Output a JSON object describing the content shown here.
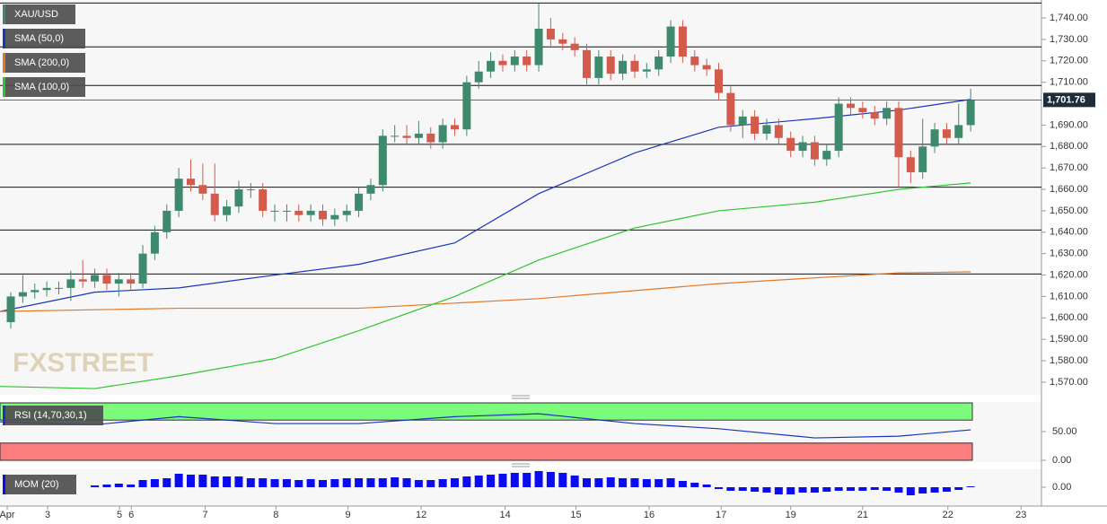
{
  "chart_data": {
    "type": "candlestick",
    "symbol": "XAU/USD",
    "watermark": "FXSTREET",
    "bull_color": "#3e8a6d",
    "bear_color": "#d45a4c",
    "xlim": [
      -0.9,
      85.9
    ],
    "xticks": [
      {
        "value": -0.3,
        "label": "Apr"
      },
      {
        "value": 3.07,
        "label": "3"
      },
      {
        "value": 9.06,
        "label": "5"
      },
      {
        "value": 10.04,
        "label": "6"
      },
      {
        "value": 16.2,
        "label": "7"
      },
      {
        "value": 22.1,
        "label": "8"
      },
      {
        "value": 28.1,
        "label": "9"
      },
      {
        "value": 34.2,
        "label": "12"
      },
      {
        "value": 41.2,
        "label": "14"
      },
      {
        "value": 47.1,
        "label": "15"
      },
      {
        "value": 53.2,
        "label": "16"
      },
      {
        "value": 59.2,
        "label": "17"
      },
      {
        "value": 65.0,
        "label": "19"
      },
      {
        "value": 71.0,
        "label": "21"
      },
      {
        "value": 78.1,
        "label": "22"
      },
      {
        "value": 84.2,
        "label": "23"
      }
    ],
    "ylim": [
      1564.1,
      1748.4
    ],
    "yticks": [
      {
        "value": 1740,
        "label": "1,740.00"
      },
      {
        "value": 1730,
        "label": "1,730.00"
      },
      {
        "value": 1720,
        "label": "1,720.00"
      },
      {
        "value": 1710,
        "label": "1,710.00"
      },
      {
        "value": 1690,
        "label": "1,690.00"
      },
      {
        "value": 1680,
        "label": "1,680.00"
      },
      {
        "value": 1670,
        "label": "1,670.00"
      },
      {
        "value": 1660,
        "label": "1,660.00"
      },
      {
        "value": 1650,
        "label": "1,650.00"
      },
      {
        "value": 1640,
        "label": "1,640.00"
      },
      {
        "value": 1630,
        "label": "1,630.00"
      },
      {
        "value": 1620,
        "label": "1,620.00"
      },
      {
        "value": 1610,
        "label": "1,610.00"
      },
      {
        "value": 1600,
        "label": "1,600.00"
      },
      {
        "value": 1590,
        "label": "1,590.00"
      },
      {
        "value": 1580,
        "label": "1,580.00"
      },
      {
        "value": 1570,
        "label": "1,570.00"
      }
    ],
    "last_price": {
      "value": 1701.76,
      "label": "1,701.76"
    },
    "levels": [
      1747,
      1726.5,
      1708.5,
      1681,
      1661,
      1641,
      1620.5
    ],
    "candles": [
      [
        1598,
        1612,
        1595,
        1610
      ],
      [
        1610,
        1620,
        1607,
        1612
      ],
      [
        1612,
        1616,
        1609,
        1613
      ],
      [
        1613,
        1617,
        1610,
        1614
      ],
      [
        1614,
        1617,
        1611,
        1614
      ],
      [
        1614,
        1622,
        1608,
        1618
      ],
      [
        1618,
        1627,
        1614,
        1617
      ],
      [
        1617,
        1623,
        1614,
        1620
      ],
      [
        1620,
        1623,
        1613,
        1616
      ],
      [
        1616,
        1621,
        1610,
        1618
      ],
      [
        1618,
        1621,
        1613,
        1616
      ],
      [
        1616,
        1634,
        1614,
        1630
      ],
      [
        1630,
        1643,
        1627,
        1640
      ],
      [
        1640,
        1653,
        1637,
        1650
      ],
      [
        1650,
        1670,
        1647,
        1665
      ],
      [
        1665,
        1674,
        1659,
        1662
      ],
      [
        1662,
        1672,
        1655,
        1658
      ],
      [
        1658,
        1672,
        1645,
        1648
      ],
      [
        1648,
        1655,
        1645,
        1652
      ],
      [
        1652,
        1664,
        1649,
        1660
      ],
      [
        1660,
        1663,
        1656,
        1660
      ],
      [
        1660,
        1663,
        1647,
        1650
      ],
      [
        1650,
        1653,
        1645,
        1650
      ],
      [
        1650,
        1653,
        1645,
        1650
      ],
      [
        1650,
        1653,
        1645,
        1648
      ],
      [
        1648,
        1653,
        1645,
        1650
      ],
      [
        1650,
        1653,
        1643,
        1646
      ],
      [
        1646,
        1651,
        1643,
        1648
      ],
      [
        1648,
        1653,
        1645,
        1650
      ],
      [
        1650,
        1661,
        1647,
        1658
      ],
      [
        1658,
        1665,
        1655,
        1662
      ],
      [
        1662,
        1688,
        1659,
        1685
      ],
      [
        1685,
        1690,
        1682,
        1685
      ],
      [
        1685,
        1690,
        1681,
        1684
      ],
      [
        1684,
        1692,
        1681,
        1686
      ],
      [
        1686,
        1689,
        1679,
        1682
      ],
      [
        1682,
        1693,
        1679,
        1690
      ],
      [
        1690,
        1693,
        1685,
        1688
      ],
      [
        1688,
        1713,
        1685,
        1710
      ],
      [
        1710,
        1720,
        1707,
        1715
      ],
      [
        1715,
        1724,
        1712,
        1720
      ],
      [
        1720,
        1723,
        1715,
        1718
      ],
      [
        1718,
        1725,
        1715,
        1722
      ],
      [
        1722,
        1725,
        1715,
        1718
      ],
      [
        1718,
        1747,
        1715,
        1735
      ],
      [
        1735,
        1740,
        1727,
        1730
      ],
      [
        1730,
        1733,
        1725,
        1728
      ],
      [
        1728,
        1731,
        1722,
        1725
      ],
      [
        1725,
        1728,
        1709,
        1712
      ],
      [
        1712,
        1725,
        1709,
        1722
      ],
      [
        1722,
        1725,
        1711,
        1714
      ],
      [
        1714,
        1723,
        1711,
        1720
      ],
      [
        1720,
        1723,
        1712,
        1715
      ],
      [
        1715,
        1719,
        1712,
        1716
      ],
      [
        1716,
        1725,
        1713,
        1722
      ],
      [
        1722,
        1739,
        1719,
        1736
      ],
      [
        1736,
        1739,
        1719,
        1722
      ],
      [
        1722,
        1725,
        1715,
        1718
      ],
      [
        1718,
        1721,
        1713,
        1716
      ],
      [
        1716,
        1719,
        1702,
        1705
      ],
      [
        1705,
        1708,
        1687,
        1690
      ],
      [
        1690,
        1697,
        1684,
        1694
      ],
      [
        1694,
        1697,
        1683,
        1686
      ],
      [
        1686,
        1693,
        1683,
        1690
      ],
      [
        1690,
        1693,
        1681,
        1684
      ],
      [
        1684,
        1687,
        1675,
        1678
      ],
      [
        1678,
        1685,
        1675,
        1682
      ],
      [
        1682,
        1685,
        1671,
        1674
      ],
      [
        1674,
        1681,
        1671,
        1678
      ],
      [
        1678,
        1703,
        1675,
        1700
      ],
      [
        1700,
        1703,
        1695,
        1698
      ],
      [
        1698,
        1701,
        1693,
        1696
      ],
      [
        1696,
        1699,
        1690,
        1693
      ],
      [
        1693,
        1701,
        1690,
        1698
      ],
      [
        1698,
        1701,
        1661,
        1675
      ],
      [
        1675,
        1678,
        1663,
        1668
      ],
      [
        1668,
        1693,
        1665,
        1680
      ],
      [
        1680,
        1691,
        1677,
        1688
      ],
      [
        1688,
        1691,
        1681,
        1684
      ],
      [
        1684,
        1700,
        1681,
        1690
      ],
      [
        1690,
        1707,
        1687,
        1701.76
      ]
    ],
    "series": [
      {
        "name": "SMA (50,0)",
        "color": "#1a35b8",
        "x": [
          -0.9,
          7,
          14,
          22,
          29,
          37,
          44,
          52,
          59,
          67,
          74,
          80
        ],
        "values": [
          1603,
          1612,
          1614,
          1620,
          1625,
          1635,
          1658,
          1677,
          1689,
          1693,
          1697,
          1702
        ]
      },
      {
        "name": "SMA (200,0)",
        "color": "#e0782a",
        "x": [
          -0.9,
          14,
          29,
          44,
          59,
          74,
          80
        ],
        "values": [
          1603,
          1604.5,
          1604.5,
          1609,
          1616,
          1621,
          1621.5
        ]
      },
      {
        "name": "SMA (100,0)",
        "color": "#2fc42f",
        "x": [
          -0.9,
          7,
          14,
          22,
          29,
          37,
          44,
          52,
          59,
          67,
          74,
          80
        ],
        "values": [
          1568,
          1567,
          1573,
          1581,
          1594,
          1610,
          1627,
          1642,
          1650,
          1654,
          1660,
          1663
        ]
      }
    ],
    "rsi": {
      "name": "RSI (14,70,30,1)",
      "color": "#1a35b8",
      "ylim": [
        0,
        100
      ],
      "yticks": [
        {
          "value": 50,
          "label": "50.00"
        },
        {
          "value": 0,
          "label": "0.00"
        }
      ],
      "overbought": [
        70,
        100
      ],
      "oversold": [
        0,
        30
      ],
      "x": [
        -0.9,
        7,
        14,
        22,
        29,
        37,
        44,
        52,
        59,
        67,
        74,
        80
      ],
      "values": [
        67,
        62,
        76,
        64,
        64,
        76,
        81,
        64,
        55,
        39,
        42,
        53
      ]
    },
    "mom": {
      "name": "MOM (20)",
      "color": "#0b0bf0",
      "ylim": [
        -20,
        20
      ],
      "yticks": [
        {
          "value": 0,
          "label": "0.00"
        }
      ],
      "values": [
        null,
        null,
        null,
        null,
        null,
        null,
        null,
        2,
        3,
        4,
        3,
        8,
        9,
        10,
        15,
        14,
        14,
        12,
        12,
        12,
        10,
        10,
        9,
        9,
        8,
        9,
        8,
        9,
        10,
        10,
        10,
        10,
        11,
        10,
        8,
        8,
        9,
        10,
        12,
        13,
        14,
        15,
        16,
        16,
        18,
        17,
        16,
        13,
        10,
        10,
        11,
        10,
        10,
        9,
        9,
        10,
        7,
        5,
        3,
        -2,
        -4,
        -4,
        -5,
        -6,
        -8,
        -8,
        -6,
        -6,
        -5,
        -4,
        -4,
        -4,
        -3,
        -4,
        -6,
        -9,
        -7,
        -6,
        -5,
        -3,
        1
      ]
    }
  }
}
